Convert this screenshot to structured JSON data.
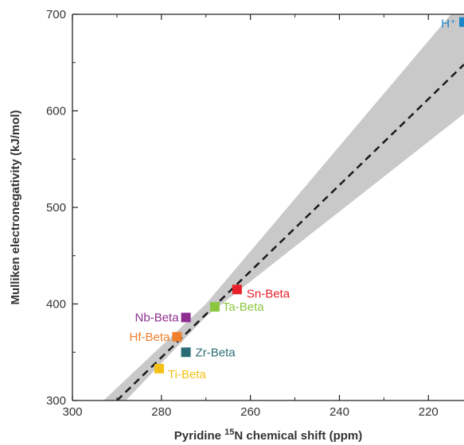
{
  "chart_data": {
    "type": "scatter",
    "xlabel": "Pyridine ¹⁵N chemical shift (ppm)",
    "xlabel_parts": {
      "prefix": "Pyridine ",
      "sup": "15",
      "suffix": "N chemical shift (ppm)"
    },
    "ylabel": "Mulliken electronegativity (kJ/mol)",
    "xlim": [
      300,
      212
    ],
    "ylim": [
      300,
      700
    ],
    "x_ticks": [
      300,
      280,
      260,
      240,
      220
    ],
    "y_ticks": [
      300,
      400,
      500,
      600,
      700
    ],
    "x_minor_step": 10,
    "y_minor_step": 50,
    "x_reversed": true,
    "grid": false,
    "points": [
      {
        "label": "Ti-Beta",
        "x": 280.5,
        "y": 333,
        "color": "#f5c116"
      },
      {
        "label": "Hf-Beta",
        "x": 276.5,
        "y": 366,
        "color": "#f07f2f"
      },
      {
        "label": "Zr-Beta",
        "x": 274.5,
        "y": 350,
        "color": "#2a6b76"
      },
      {
        "label": "Nb-Beta",
        "x": 274.5,
        "y": 386,
        "color": "#8e2d91"
      },
      {
        "label": "Ta-Beta",
        "x": 268,
        "y": 397,
        "color": "#8cc63f"
      },
      {
        "label": "Sn-Beta",
        "x": 263,
        "y": 415,
        "color": "#e8202a"
      },
      {
        "label": "H⁺",
        "x": 212,
        "y": 692,
        "color": "#1a86c8"
      }
    ],
    "fit_line": {
      "style": "dashed",
      "color": "#1a1a1a",
      "points": [
        [
          290,
          300
        ],
        [
          212,
          648
        ]
      ]
    },
    "confidence_band": {
      "color": "#c9c9c9",
      "upper": [
        [
          293,
          300
        ],
        [
          270,
          400
        ],
        [
          212,
          716
        ]
      ],
      "lower": [
        [
          288,
          300
        ],
        [
          270,
          387
        ],
        [
          212,
          597
        ]
      ]
    }
  }
}
